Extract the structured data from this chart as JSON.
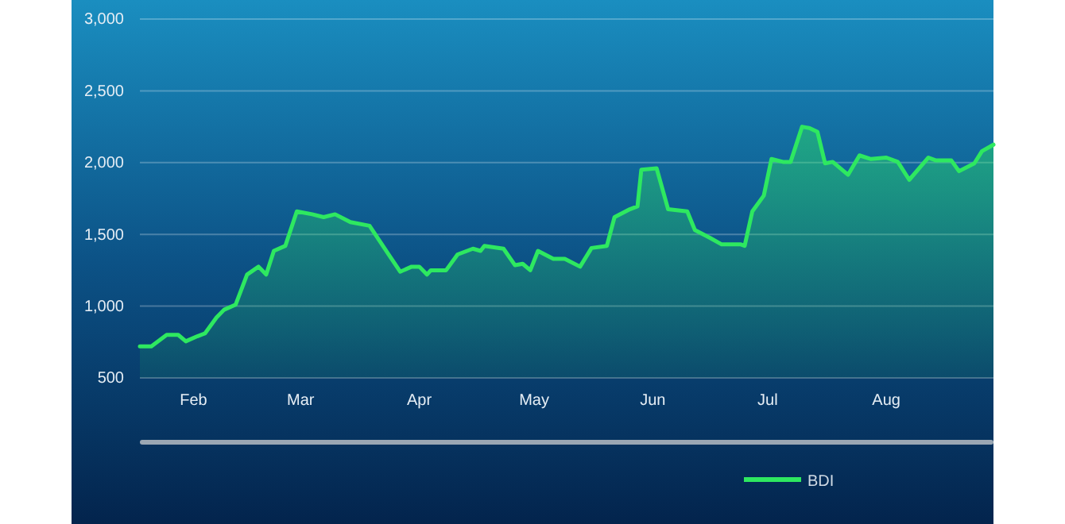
{
  "chart_data": {
    "type": "area",
    "grid": "y",
    "legend": "bottom",
    "xlim": [
      "--01-18",
      "--08-29"
    ],
    "xticks": [
      {
        "value": "--02-01",
        "label": "Feb"
      },
      {
        "value": "--03-01",
        "label": "Mar"
      },
      {
        "value": "--04-01",
        "label": "Apr"
      },
      {
        "value": "--05-01",
        "label": "May"
      },
      {
        "value": "--06-01",
        "label": "Jun"
      },
      {
        "value": "--07-01",
        "label": "Jul"
      },
      {
        "value": "--08-01",
        "label": "Aug"
      }
    ],
    "ylim": [
      500,
      3000
    ],
    "yticks": [
      500,
      {
        "value": 1000,
        "label": "1,000"
      },
      {
        "value": 1500,
        "label": "1,500"
      },
      {
        "value": 2000,
        "label": "2,000"
      },
      {
        "value": 2500,
        "label": "2,500"
      },
      {
        "value": 3000,
        "label": "3,000"
      }
    ],
    "series": [
      {
        "name": "BDI",
        "color": "#2ee860",
        "x": [
          "--01-18",
          "--01-21",
          "--01-25",
          "--01-28",
          "--01-30",
          "--02-02",
          "--02-04",
          "--02-07",
          "--02-09",
          "--02-12",
          "--02-15",
          "--02-18",
          "--02-20",
          "--02-22",
          "--02-25",
          "--02-28",
          "--03-04",
          "--03-07",
          "--03-10",
          "--03-14",
          "--03-19",
          "--03-22",
          "--03-24",
          "--03-27",
          "--03-30",
          "--04-01",
          "--04-03",
          "--04-04",
          "--04-08",
          "--04-11",
          "--04-15",
          "--04-17",
          "--04-18",
          "--04-23",
          "--04-26",
          "--04-28",
          "--04-30",
          "--05-02",
          "--05-06",
          "--05-09",
          "--05-13",
          "--05-16",
          "--05-20",
          "--05-22",
          "--05-26",
          "--05-28",
          "--05-29",
          "--06-02",
          "--06-05",
          "--06-10",
          "--06-12",
          "--06-16",
          "--06-19",
          "--06-24",
          "--06-25",
          "--06-27",
          "--06-30",
          "--07-02",
          "--07-05",
          "--07-07",
          "--07-10",
          "--07-12",
          "--07-14",
          "--07-16",
          "--07-18",
          "--07-22",
          "--07-25",
          "--07-28",
          "--08-01",
          "--08-04",
          "--08-07",
          "--08-12",
          "--08-14",
          "--08-18",
          "--08-20",
          "--08-24",
          "--08-26",
          "--08-29"
        ],
        "values": [
          720,
          720,
          800,
          800,
          755,
          790,
          810,
          920,
          975,
          1010,
          1220,
          1275,
          1220,
          1385,
          1420,
          1660,
          1640,
          1620,
          1640,
          1585,
          1560,
          1440,
          1360,
          1240,
          1275,
          1275,
          1220,
          1250,
          1250,
          1360,
          1400,
          1385,
          1420,
          1400,
          1285,
          1295,
          1250,
          1385,
          1330,
          1330,
          1275,
          1405,
          1420,
          1620,
          1675,
          1695,
          1950,
          1960,
          1675,
          1660,
          1530,
          1475,
          1430,
          1430,
          1420,
          1660,
          1770,
          2025,
          2005,
          2005,
          2250,
          2240,
          2215,
          1995,
          2005,
          1915,
          2050,
          2025,
          2035,
          2005,
          1880,
          2035,
          2015,
          2015,
          1940,
          1995,
          2080,
          2125
        ]
      }
    ]
  }
}
